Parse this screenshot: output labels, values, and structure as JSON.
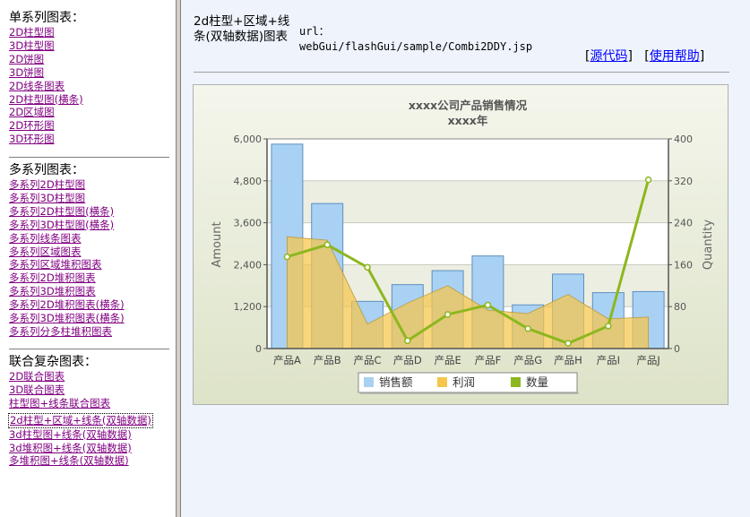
{
  "sidebar": {
    "sections": [
      {
        "title": "单系列图表：",
        "links": [
          "2D柱型图",
          "3D柱型图",
          "2D饼图",
          "3D饼图",
          "2D线条图表",
          "2D柱型图(横条)",
          "2D区域图",
          "2D环形图",
          "3D环形图"
        ]
      },
      {
        "title": "多系列图表：",
        "links": [
          "多系列2D柱型图",
          "多系列3D柱型图",
          "多系列2D柱型图(横条)",
          "多系列3D柱型图(横条)",
          "多系列线条图表",
          "多系列区域图表",
          "多系列区域堆积图表",
          "多系列2D堆积图表",
          "多系列3D堆积图表",
          "多系列2D堆积图表(横条)",
          "多系列3D堆积图表(横条)",
          "多系列分多柱堆积图表"
        ]
      },
      {
        "title": "联合复杂图表：",
        "links": [
          "2D联合图表",
          "3D联合图表",
          "柱型图+线条联合图表",
          "2d柱型+区域+线条(双轴数据)",
          "3d柱型图+线条(双轴数据)",
          "3d堆积图+线条(双轴数据)",
          "多堆积图+线条(双轴数据)"
        ]
      }
    ]
  },
  "header": {
    "title": "2d柱型+区域+线条(双轴数据)图表",
    "url_label": "url：",
    "url": "webGui/flashGui/sample/Combi2DDY.jsp",
    "source_link": "源代码",
    "help_link": "使用帮助"
  },
  "colors": {
    "bar": "#a9d1f3",
    "bar_edge": "#5d8fc0",
    "area": "#f6c64a",
    "line": "#8cb71e",
    "marker": "#ffffff"
  },
  "chart_data": {
    "type": "combination",
    "title": "xxxx公司产品销售情况",
    "subtitle": "xxxx年",
    "categories": [
      "产品A",
      "产品B",
      "产品C",
      "产品D",
      "产品E",
      "产品F",
      "产品G",
      "产品H",
      "产品I",
      "产品J"
    ],
    "y_left": {
      "label": "Amount",
      "min": 0,
      "max": 6000,
      "ticks": [
        "0",
        "1,200",
        "2,400",
        "3,600",
        "4,800",
        "6,000"
      ]
    },
    "y_right": {
      "label": "Quantity",
      "min": 0,
      "max": 400,
      "ticks": [
        "0",
        "80",
        "160",
        "240",
        "320",
        "400"
      ]
    },
    "series": [
      {
        "name": "销售额",
        "render": "bar",
        "axis": "left",
        "values": [
          5850,
          4150,
          1350,
          1830,
          2230,
          2650,
          1250,
          2130,
          1600,
          1630
        ]
      },
      {
        "name": "利润",
        "render": "area",
        "axis": "left",
        "values": [
          3200,
          3100,
          700,
          1300,
          1800,
          1100,
          1000,
          1550,
          850,
          900
        ]
      },
      {
        "name": "数量",
        "render": "line",
        "axis": "right",
        "values": [
          175,
          198,
          155,
          15,
          65,
          83,
          38,
          10,
          43,
          322
        ]
      }
    ],
    "legend_position": "bottom"
  }
}
